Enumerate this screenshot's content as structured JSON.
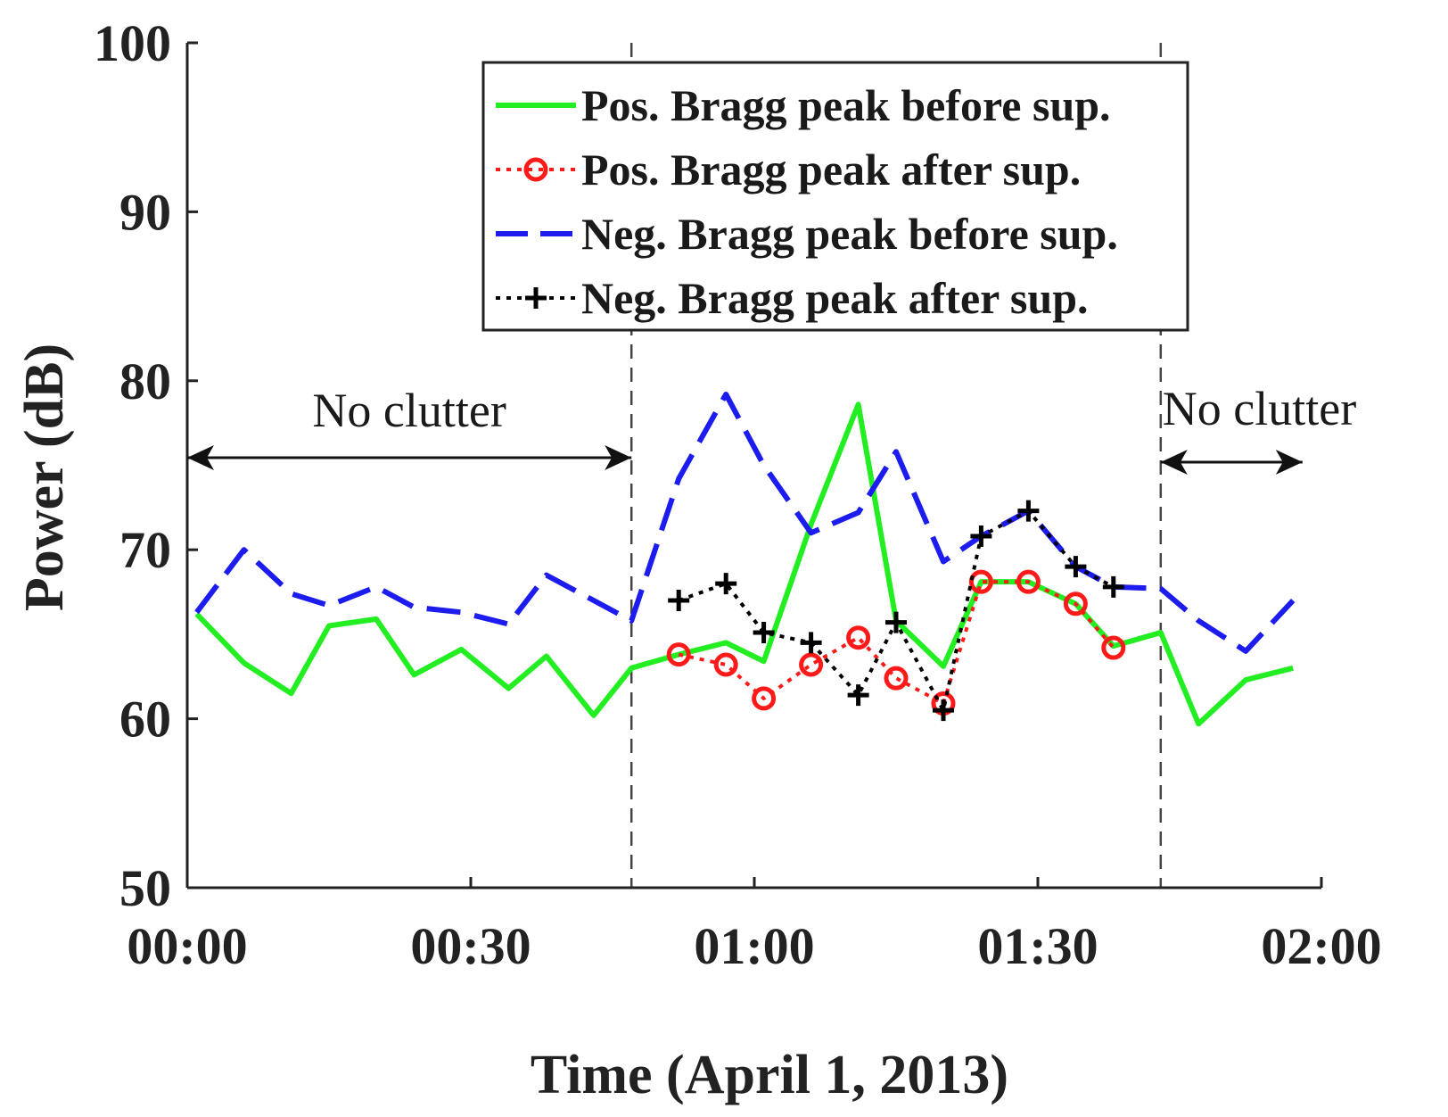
{
  "chart_data": {
    "type": "line",
    "title": "",
    "xlabel": "Time (April 1, 2013)",
    "ylabel": "Power (dB)",
    "xlim_minutes": [
      0,
      120
    ],
    "ylim": [
      50,
      100
    ],
    "x_ticks": [
      {
        "value": 0,
        "label": "00:00"
      },
      {
        "value": 30,
        "label": "00:30"
      },
      {
        "value": 60,
        "label": "01:00"
      },
      {
        "value": 90,
        "label": "01:30"
      },
      {
        "value": 120,
        "label": "02:00"
      }
    ],
    "y_ticks": [
      {
        "value": 50,
        "label": "50"
      },
      {
        "value": 60,
        "label": "60"
      },
      {
        "value": 70,
        "label": "70"
      },
      {
        "value": 80,
        "label": "80"
      },
      {
        "value": 90,
        "label": "90"
      },
      {
        "value": 100,
        "label": "100"
      }
    ],
    "clutter_boundaries_minutes": [
      47,
      103
    ],
    "annotations": [
      {
        "text": "No clutter",
        "from": 0,
        "to": 47
      },
      {
        "text": "No clutter",
        "from": 103,
        "to": 118
      }
    ],
    "series": [
      {
        "name": "Pos. Bragg peak before sup.",
        "color": "#22ee22",
        "style": "solid",
        "marker": "none",
        "x": [
          1,
          6,
          11,
          15,
          20,
          24,
          29,
          34,
          38,
          43,
          47,
          52,
          57,
          61,
          66,
          71,
          75,
          80,
          84,
          89,
          94,
          98,
          103,
          107,
          112,
          117
        ],
        "y": [
          66.2,
          63.3,
          61.5,
          65.5,
          65.9,
          62.6,
          64.1,
          61.8,
          63.7,
          60.2,
          63.0,
          63.8,
          64.5,
          63.4,
          71.5,
          78.6,
          65.8,
          63.1,
          68.1,
          68.1,
          66.8,
          64.3,
          65.1,
          59.7,
          62.3,
          63.0
        ]
      },
      {
        "name": "Pos. Bragg peak after sup.",
        "color": "#ff1a1a",
        "style": "dotted",
        "marker": "circle",
        "x": [
          52,
          57,
          61,
          66,
          71,
          75,
          80,
          84,
          89,
          94,
          98
        ],
        "y": [
          63.8,
          63.2,
          61.2,
          63.2,
          64.8,
          62.4,
          60.9,
          68.1,
          68.1,
          66.8,
          64.2
        ]
      },
      {
        "name": "Neg. Bragg peak before sup.",
        "color": "#1c1cee",
        "style": "dashed",
        "marker": "none",
        "x": [
          1,
          6,
          11,
          15,
          20,
          24,
          29,
          34,
          38,
          43,
          47,
          52,
          57,
          61,
          66,
          71,
          75,
          80,
          84,
          89,
          94,
          98,
          103,
          107,
          112,
          117
        ],
        "y": [
          66.3,
          70.0,
          67.4,
          66.7,
          67.8,
          66.6,
          66.3,
          65.6,
          68.5,
          67.0,
          65.8,
          74.2,
          79.2,
          75.0,
          71.0,
          72.2,
          75.8,
          69.3,
          70.8,
          72.3,
          69.0,
          67.8,
          67.7,
          65.8,
          64.0,
          67.0
        ]
      },
      {
        "name": "Neg. Bragg peak after sup.",
        "color": "#000000",
        "style": "dotted",
        "marker": "plus",
        "x": [
          52,
          57,
          61,
          66,
          71,
          75,
          80,
          84,
          89,
          94,
          98
        ],
        "y": [
          67.0,
          68.0,
          65.1,
          64.5,
          61.4,
          65.7,
          60.5,
          70.8,
          72.3,
          69.0,
          67.8
        ]
      }
    ],
    "legend_position": "top-right"
  }
}
